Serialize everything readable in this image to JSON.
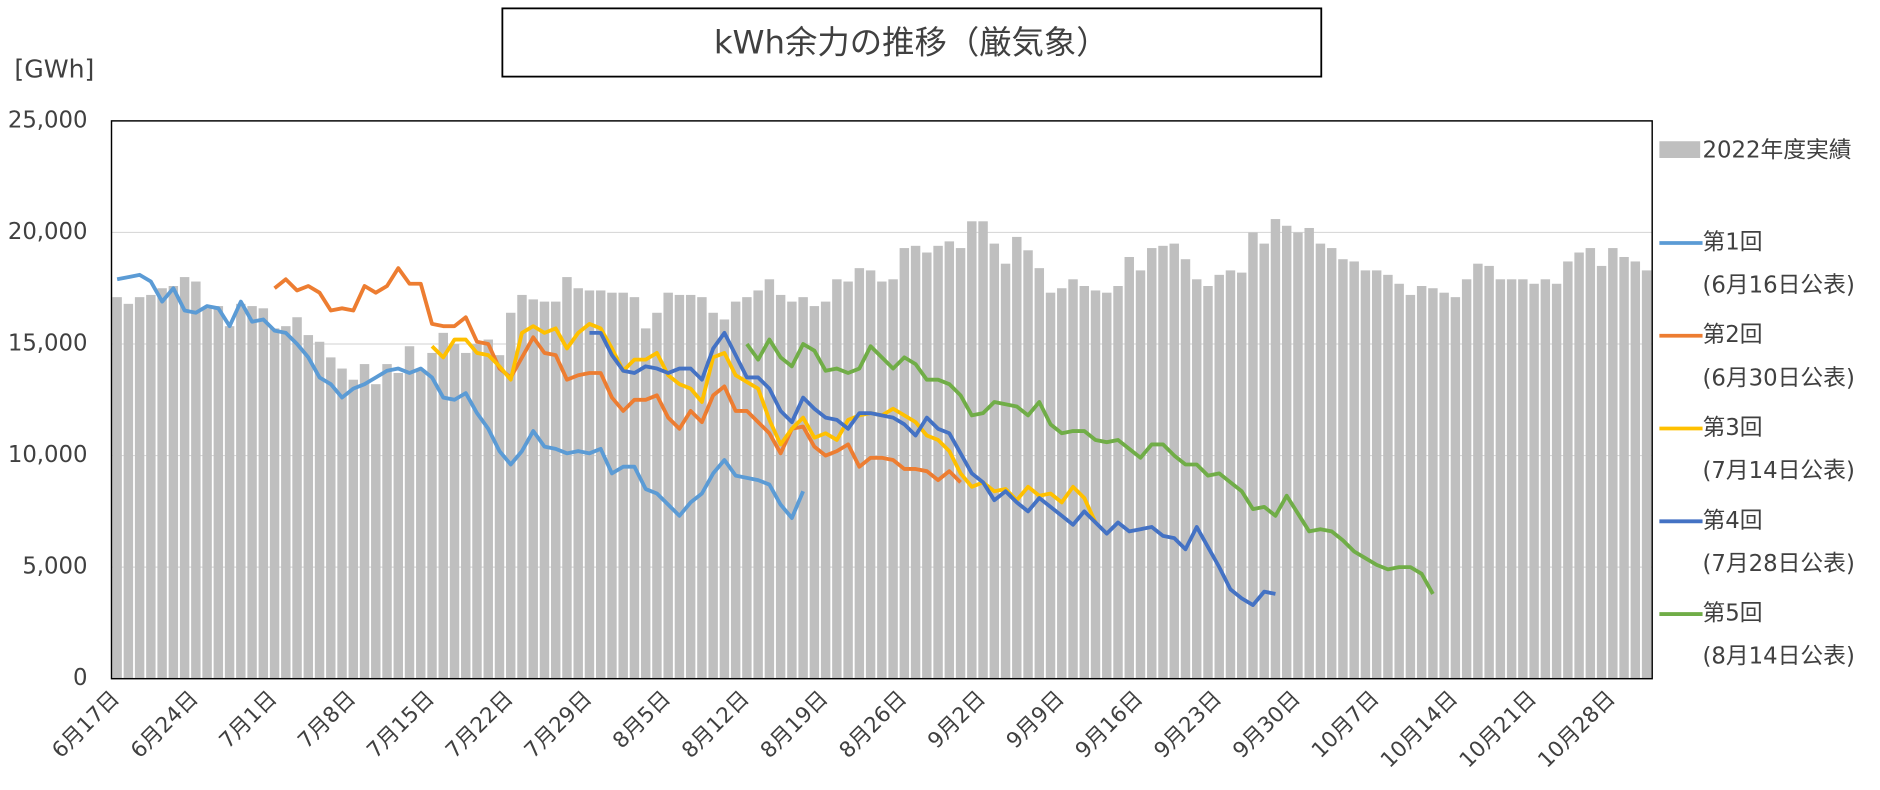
{
  "chart_data": {
    "type": "bar_line",
    "title": "kWh余力の推移（厳気象）",
    "y_label": "[GWh]",
    "ylim": [
      0,
      25000
    ],
    "yticks": [
      0,
      {
        "value": 5000,
        "label": "5,000"
      },
      {
        "value": 10000,
        "label": "10,000"
      },
      {
        "value": 15000,
        "label": "15,000"
      },
      {
        "value": 20000,
        "label": "20,000"
      },
      {
        "value": 25000,
        "label": "25,000"
      }
    ],
    "grid": true,
    "legend": "right",
    "categories": [
      "6月17日",
      null,
      null,
      null,
      null,
      null,
      null,
      "6月24日",
      null,
      null,
      null,
      null,
      null,
      null,
      "7月1日",
      null,
      null,
      null,
      null,
      null,
      null,
      "7月8日",
      null,
      null,
      null,
      null,
      null,
      null,
      "7月15日",
      null,
      null,
      null,
      null,
      null,
      null,
      "7月22日",
      null,
      null,
      null,
      null,
      null,
      null,
      "7月29日",
      null,
      null,
      null,
      null,
      null,
      null,
      "8月5日",
      null,
      null,
      null,
      null,
      null,
      null,
      "8月12日",
      null,
      null,
      null,
      null,
      null,
      null,
      "8月19日",
      null,
      null,
      null,
      null,
      null,
      null,
      "8月26日",
      null,
      null,
      null,
      null,
      null,
      null,
      "9月2日",
      null,
      null,
      null,
      null,
      null,
      null,
      "9月9日",
      null,
      null,
      null,
      null,
      null,
      null,
      "9月16日",
      null,
      null,
      null,
      null,
      null,
      null,
      "9月23日",
      null,
      null,
      null,
      null,
      null,
      null,
      "9月30日",
      null,
      null,
      null,
      null,
      null,
      null,
      "10月7日",
      null,
      null,
      null,
      null,
      null,
      null,
      "10月14日",
      null,
      null,
      null,
      null,
      null,
      null,
      "10月21日",
      null,
      null,
      null,
      null,
      null,
      null,
      "10月28日",
      null,
      null,
      null
    ],
    "bar_series": {
      "name": "2022年度実績",
      "color": "#bfbfbf",
      "values": [
        17100,
        16800,
        17100,
        17200,
        17500,
        17600,
        18000,
        17800,
        16600,
        16700,
        15800,
        16800,
        16700,
        16600,
        15700,
        15800,
        16200,
        15400,
        15100,
        14400,
        13900,
        13400,
        14100,
        13200,
        14100,
        13700,
        14900,
        13800,
        14600,
        15500,
        15000,
        14600,
        15000,
        15200,
        14500,
        16400,
        17200,
        17000,
        16900,
        16900,
        18000,
        17500,
        17400,
        17400,
        17300,
        17300,
        17100,
        15700,
        16400,
        17300,
        17200,
        17200,
        17100,
        16400,
        16100,
        16900,
        17100,
        17400,
        17900,
        17200,
        16900,
        17100,
        16700,
        16900,
        17900,
        17800,
        18400,
        18300,
        17800,
        17900,
        19300,
        19400,
        19100,
        19400,
        19600,
        19300,
        20500,
        20500,
        19500,
        18600,
        19800,
        19200,
        18400,
        17300,
        17500,
        17900,
        17600,
        17400,
        17300,
        17600,
        18900,
        18300,
        19300,
        19400,
        19500,
        18800,
        17900,
        17600,
        18100,
        18300,
        18200,
        20000,
        19500,
        20600,
        20300,
        20000,
        20200,
        19500,
        19300,
        18800,
        18700,
        18300,
        18300,
        18100,
        17700,
        17200,
        17600,
        17500,
        17300,
        17100,
        17900,
        18600,
        18500,
        17900,
        17900,
        17900,
        17700,
        17900,
        17700,
        18700,
        19100,
        19300,
        18500,
        19300,
        18900,
        18700,
        18300
      ]
    },
    "series": [
      {
        "name": "第1回",
        "note": "(6月16日公表)",
        "color": "#5b9bd5",
        "values": [
          17900,
          18000,
          18100,
          17800,
          16900,
          17500,
          16500,
          16400,
          16700,
          16600,
          15800,
          16900,
          16000,
          16100,
          15600,
          15500,
          15000,
          14400,
          13500,
          13200,
          12600,
          13000,
          13200,
          13500,
          13800,
          13900,
          13700,
          13900,
          13500,
          12600,
          12500,
          12800,
          11900,
          11200,
          10200,
          9600,
          10200,
          11100,
          10400,
          10300,
          10100,
          10200,
          10100,
          10300,
          9200,
          9500,
          9500,
          8500,
          8300,
          7800,
          7300,
          7900,
          8300,
          9200,
          9800,
          9100,
          9000,
          8900,
          8700,
          7800,
          7200,
          8400,
          null,
          null,
          null,
          null,
          null,
          null,
          null,
          null,
          null,
          null,
          null,
          null,
          null,
          null,
          null,
          null,
          null,
          null,
          null,
          null,
          null,
          null,
          null,
          null,
          null,
          null,
          null,
          null,
          null,
          null,
          null,
          null,
          null,
          null,
          null,
          null,
          null,
          null,
          null,
          null,
          null,
          null,
          null,
          null,
          null,
          null,
          null,
          null,
          null,
          null,
          null,
          null,
          null,
          null,
          null,
          null,
          null,
          null,
          null,
          null,
          null,
          null,
          null,
          null,
          null,
          null,
          null,
          null,
          null,
          null,
          null,
          null,
          null,
          null,
          null
        ]
      },
      {
        "name": "第2回",
        "note": "(6月30日公表)",
        "color": "#ed7d31",
        "values": [
          null,
          null,
          null,
          null,
          null,
          null,
          null,
          null,
          null,
          null,
          null,
          null,
          null,
          null,
          17500,
          17900,
          17400,
          17600,
          17300,
          16500,
          16600,
          16500,
          17600,
          17300,
          17600,
          18400,
          17700,
          17700,
          15900,
          15800,
          15800,
          16200,
          15100,
          15000,
          13900,
          13500,
          14400,
          15300,
          14600,
          14500,
          13400,
          13600,
          13700,
          13700,
          12600,
          12000,
          12500,
          12500,
          12700,
          11700,
          11200,
          12000,
          11500,
          12700,
          13100,
          12000,
          12000,
          11500,
          11000,
          10100,
          11200,
          11300,
          10400,
          10000,
          10200,
          10500,
          9500,
          9900,
          9900,
          9800,
          9400,
          9400,
          9300,
          8900,
          9300,
          8800,
          null,
          null,
          null,
          null,
          null,
          null,
          null,
          null,
          null,
          null,
          null,
          null,
          null,
          null,
          null,
          null,
          null,
          null,
          null,
          null,
          null,
          null,
          null,
          null,
          null,
          null,
          null,
          null,
          null,
          null,
          null,
          null,
          null,
          null,
          null,
          null,
          null,
          null,
          null,
          null,
          null,
          null,
          null,
          null,
          null,
          null,
          null,
          null,
          null,
          null,
          null,
          null,
          null,
          null,
          null,
          null,
          null,
          null,
          null,
          null,
          null
        ]
      },
      {
        "name": "第3回",
        "note": "(7月14日公表)",
        "color": "#ffc000",
        "values": [
          null,
          null,
          null,
          null,
          null,
          null,
          null,
          null,
          null,
          null,
          null,
          null,
          null,
          null,
          null,
          null,
          null,
          null,
          null,
          null,
          null,
          null,
          null,
          null,
          null,
          null,
          null,
          null,
          14900,
          14400,
          15200,
          15200,
          14600,
          14500,
          14000,
          13400,
          15500,
          15800,
          15500,
          15700,
          14800,
          15500,
          15900,
          15700,
          14800,
          13800,
          14300,
          14300,
          14600,
          13600,
          13200,
          13000,
          12400,
          14400,
          14600,
          13600,
          13300,
          13000,
          11600,
          10500,
          11200,
          11700,
          10800,
          11000,
          10700,
          11600,
          11800,
          11900,
          11800,
          12100,
          11800,
          11500,
          10900,
          10700,
          10200,
          9200,
          8600,
          8800,
          8400,
          8500,
          8000,
          8600,
          8200,
          8300,
          7900,
          8600,
          8100,
          7000,
          null,
          null,
          null,
          null,
          null,
          null,
          null,
          null,
          null,
          null,
          null,
          null,
          null,
          null,
          null,
          null,
          null,
          null,
          null,
          null,
          null,
          null,
          null,
          null,
          null,
          null,
          null,
          null,
          null,
          null,
          null,
          null,
          null,
          null,
          null,
          null,
          null,
          null,
          null,
          null,
          null,
          null,
          null,
          null,
          null,
          null,
          null,
          null,
          null
        ]
      },
      {
        "name": "第4回",
        "note": "(7月28日公表)",
        "color": "#4472c4",
        "values": [
          null,
          null,
          null,
          null,
          null,
          null,
          null,
          null,
          null,
          null,
          null,
          null,
          null,
          null,
          null,
          null,
          null,
          null,
          null,
          null,
          null,
          null,
          null,
          null,
          null,
          null,
          null,
          null,
          null,
          null,
          null,
          null,
          null,
          null,
          null,
          null,
          null,
          null,
          null,
          null,
          null,
          null,
          15500,
          15500,
          14500,
          13800,
          13700,
          14000,
          13900,
          13700,
          13900,
          13900,
          13400,
          14800,
          15500,
          14500,
          13500,
          13500,
          13000,
          12000,
          11500,
          12600,
          12100,
          11700,
          11600,
          11200,
          11900,
          11900,
          11800,
          11700,
          11400,
          10900,
          11700,
          11200,
          11000,
          10100,
          9200,
          8800,
          8000,
          8400,
          7900,
          7500,
          8100,
          7700,
          7300,
          6900,
          7500,
          7000,
          6500,
          7000,
          6600,
          6700,
          6800,
          6400,
          6300,
          5800,
          6800,
          5900,
          5000,
          4000,
          3600,
          3300,
          3900,
          3800,
          null,
          null,
          null,
          null,
          null,
          null,
          null,
          null,
          null,
          null,
          null,
          null,
          null,
          null,
          null,
          null,
          null,
          null,
          null,
          null,
          null,
          null,
          null,
          null,
          null,
          null,
          null,
          null,
          null,
          null,
          null,
          null,
          null
        ]
      },
      {
        "name": "第5回",
        "note": "(8月14日公表)",
        "color": "#70ad47",
        "values": [
          null,
          null,
          null,
          null,
          null,
          null,
          null,
          null,
          null,
          null,
          null,
          null,
          null,
          null,
          null,
          null,
          null,
          null,
          null,
          null,
          null,
          null,
          null,
          null,
          null,
          null,
          null,
          null,
          null,
          null,
          null,
          null,
          null,
          null,
          null,
          null,
          null,
          null,
          null,
          null,
          null,
          null,
          null,
          null,
          null,
          null,
          null,
          null,
          null,
          null,
          null,
          null,
          null,
          null,
          null,
          null,
          15000,
          14300,
          15200,
          14400,
          14000,
          15000,
          14700,
          13800,
          13900,
          13700,
          13900,
          14900,
          14400,
          13900,
          14400,
          14100,
          13400,
          13400,
          13200,
          12700,
          11800,
          11900,
          12400,
          12300,
          12200,
          11800,
          12400,
          11400,
          11000,
          11100,
          11100,
          10700,
          10600,
          10700,
          10300,
          9900,
          10500,
          10500,
          10000,
          9600,
          9600,
          9100,
          9200,
          8800,
          8400,
          7600,
          7700,
          7300,
          8200,
          7400,
          6600,
          6700,
          6600,
          6200,
          5700,
          5400,
          5100,
          4900,
          5000,
          5000,
          4700,
          3800,
          null,
          null,
          null,
          null,
          null,
          null,
          null,
          null,
          null,
          null,
          null,
          null,
          null,
          null,
          null,
          null,
          null,
          null,
          null
        ]
      }
    ]
  }
}
